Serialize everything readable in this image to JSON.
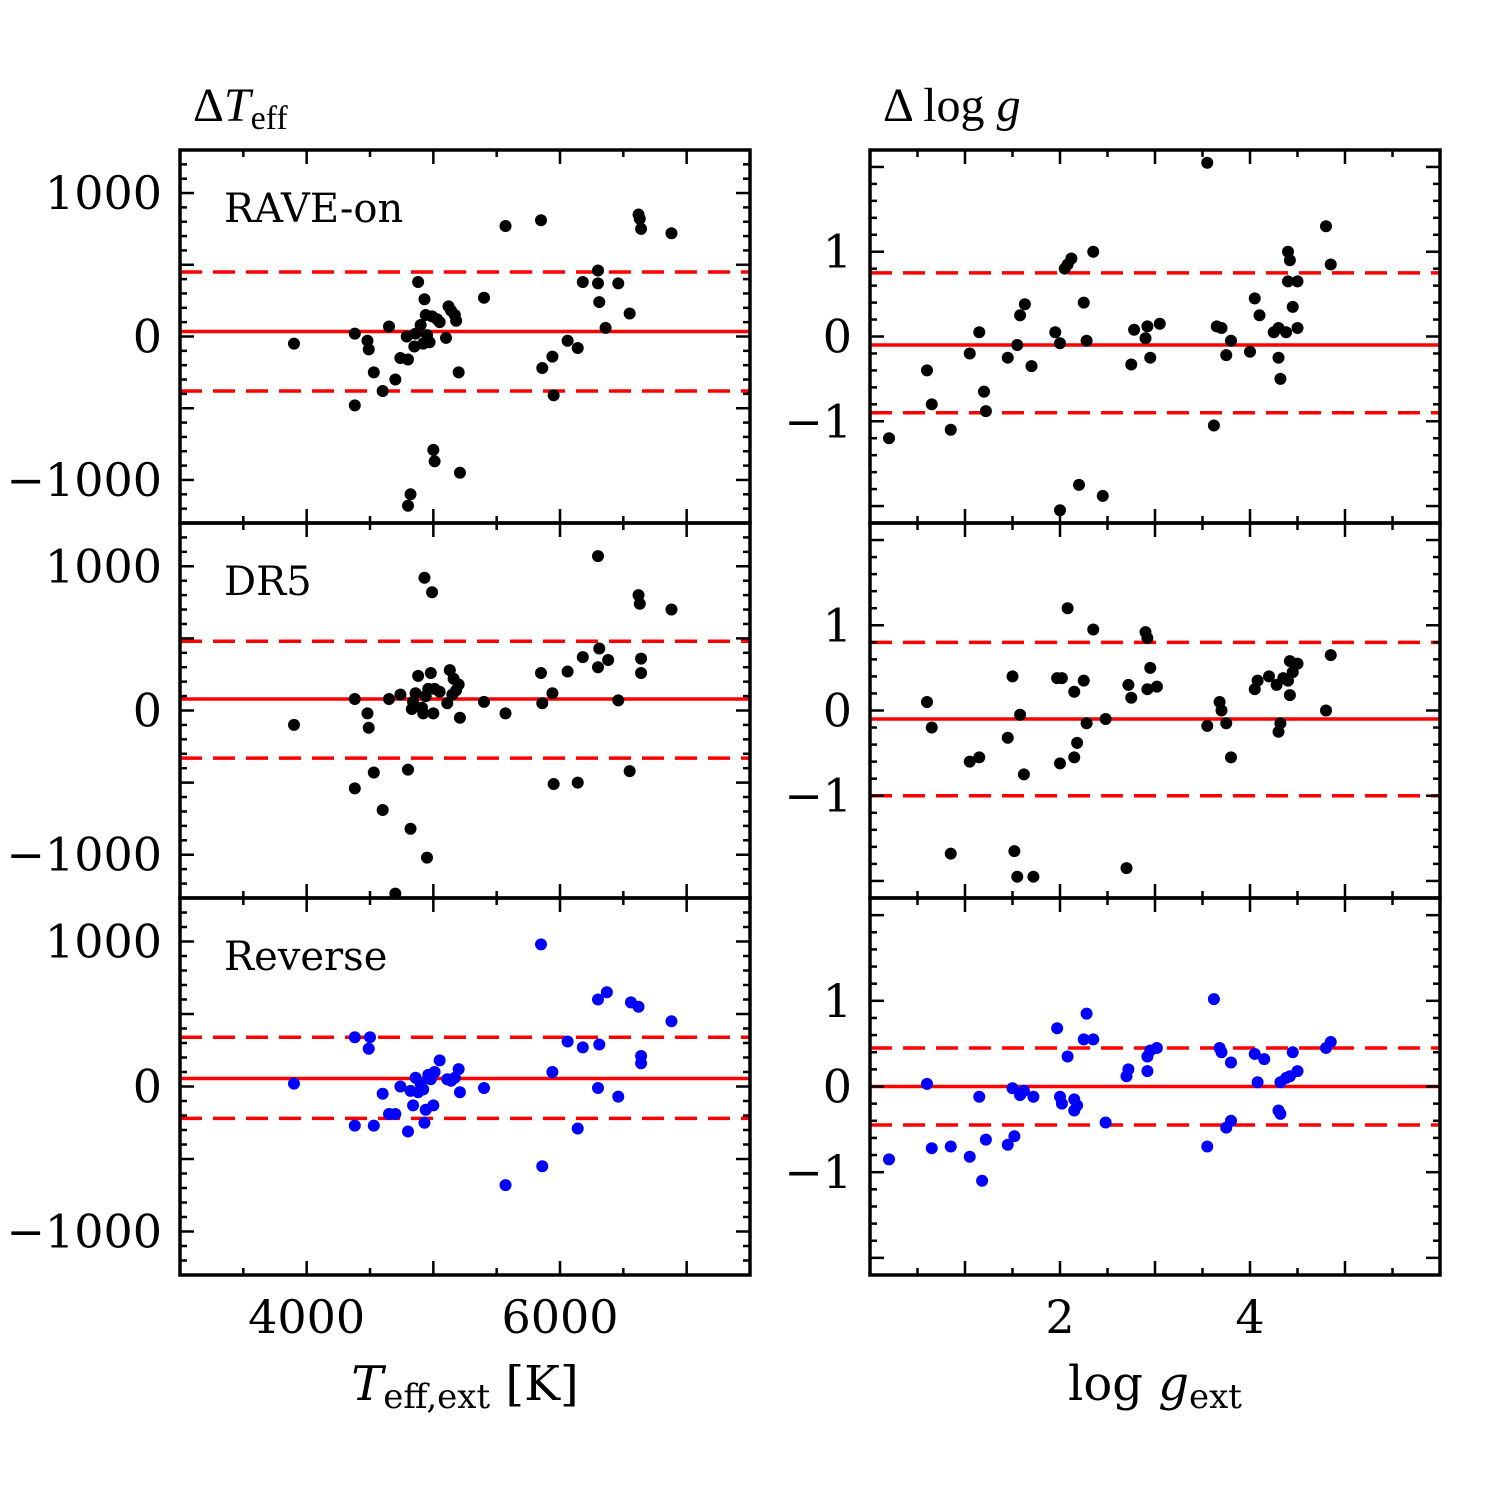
{
  "titles": {
    "left": {
      "delta": "Δ",
      "var": "T",
      "sub": "eff"
    },
    "right": {
      "delta": "Δ",
      "text": " log ",
      "var": "g"
    }
  },
  "row_labels": [
    "RAVE-on",
    "DR5",
    "Reverse"
  ],
  "colors": {
    "black_points": "#000000",
    "blue_points": "#0000ff",
    "lines": "#ff0000"
  },
  "chart_data": [
    {
      "type": "scatter",
      "column": "left",
      "row": "RAVE-on",
      "xlim": [
        3000,
        7500
      ],
      "ylim": [
        -1300,
        1300
      ],
      "yticks": [
        -1000,
        0,
        1000
      ],
      "ytick_labels": [
        "−1000",
        "0",
        "1000"
      ],
      "mean": 35,
      "lines": [
        450,
        -380
      ],
      "color": "#000000",
      "points": [
        [
          3900,
          -50
        ],
        [
          4380,
          20
        ],
        [
          4380,
          -480
        ],
        [
          4480,
          -30
        ],
        [
          4490,
          -90
        ],
        [
          4530,
          -250
        ],
        [
          4600,
          -380
        ],
        [
          4650,
          70
        ],
        [
          4700,
          -300
        ],
        [
          4740,
          -150
        ],
        [
          4800,
          -160
        ],
        [
          4850,
          -70
        ],
        [
          4860,
          20
        ],
        [
          4880,
          380
        ],
        [
          4900,
          80
        ],
        [
          4920,
          -50
        ],
        [
          4930,
          260
        ],
        [
          4940,
          150
        ],
        [
          4950,
          10
        ],
        [
          4970,
          -40
        ],
        [
          4990,
          140
        ],
        [
          5000,
          -790
        ],
        [
          5010,
          -870
        ],
        [
          5030,
          120
        ],
        [
          5050,
          100
        ],
        [
          5100,
          -10
        ],
        [
          5120,
          210
        ],
        [
          5140,
          180
        ],
        [
          5170,
          150
        ],
        [
          5180,
          110
        ],
        [
          5200,
          -250
        ],
        [
          5210,
          -950
        ],
        [
          5400,
          270
        ],
        [
          5570,
          770
        ],
        [
          5850,
          810
        ],
        [
          5860,
          -220
        ],
        [
          5940,
          -140
        ],
        [
          5950,
          -410
        ],
        [
          6060,
          -30
        ],
        [
          6140,
          -80
        ],
        [
          6180,
          380
        ],
        [
          6300,
          460
        ],
        [
          6310,
          240
        ],
        [
          6300,
          370
        ],
        [
          6360,
          60
        ],
        [
          6460,
          370
        ],
        [
          6550,
          160
        ],
        [
          6620,
          850
        ],
        [
          6630,
          820
        ],
        [
          6640,
          750
        ],
        [
          6880,
          720
        ],
        [
          4820,
          -1100
        ],
        [
          4800,
          -1180
        ],
        [
          4790,
          0
        ]
      ]
    },
    {
      "type": "scatter",
      "column": "left",
      "row": "DR5",
      "xlim": [
        3000,
        7500
      ],
      "ylim": [
        -1300,
        1300
      ],
      "yticks": [
        -1000,
        0,
        1000
      ],
      "ytick_labels": [
        "−1000",
        "0",
        "1000"
      ],
      "mean": 80,
      "lines": [
        480,
        -330
      ],
      "color": "#000000",
      "points": [
        [
          3900,
          -100
        ],
        [
          4380,
          80
        ],
        [
          4380,
          -540
        ],
        [
          4480,
          -20
        ],
        [
          4490,
          -120
        ],
        [
          4530,
          -430
        ],
        [
          4600,
          -690
        ],
        [
          4650,
          80
        ],
        [
          4740,
          110
        ],
        [
          4800,
          -410
        ],
        [
          4820,
          -820
        ],
        [
          4830,
          10
        ],
        [
          4840,
          60
        ],
        [
          4860,
          120
        ],
        [
          4880,
          240
        ],
        [
          4910,
          20
        ],
        [
          4920,
          -20
        ],
        [
          4930,
          920
        ],
        [
          4940,
          100
        ],
        [
          4950,
          -1020
        ],
        [
          4960,
          150
        ],
        [
          4980,
          260
        ],
        [
          4990,
          820
        ],
        [
          5000,
          -20
        ],
        [
          5010,
          150
        ],
        [
          5050,
          130
        ],
        [
          5110,
          50
        ],
        [
          5130,
          280
        ],
        [
          5150,
          110
        ],
        [
          5160,
          220
        ],
        [
          5180,
          140
        ],
        [
          5200,
          180
        ],
        [
          5210,
          -50
        ],
        [
          5400,
          60
        ],
        [
          5570,
          -20
        ],
        [
          5850,
          260
        ],
        [
          5860,
          50
        ],
        [
          5940,
          120
        ],
        [
          5950,
          -510
        ],
        [
          6060,
          270
        ],
        [
          6140,
          -500
        ],
        [
          6180,
          370
        ],
        [
          6300,
          1070
        ],
        [
          6300,
          300
        ],
        [
          6310,
          430
        ],
        [
          6380,
          350
        ],
        [
          6460,
          70
        ],
        [
          6550,
          -420
        ],
        [
          6620,
          800
        ],
        [
          6630,
          740
        ],
        [
          6640,
          360
        ],
        [
          6640,
          260
        ],
        [
          6880,
          700
        ],
        [
          4700,
          -1270
        ]
      ]
    },
    {
      "type": "scatter",
      "column": "left",
      "row": "Reverse",
      "xlim": [
        3000,
        7500
      ],
      "ylim": [
        -1300,
        1300
      ],
      "yticks": [
        -1000,
        0,
        1000
      ],
      "ytick_labels": [
        "−1000",
        "0",
        "1000"
      ],
      "mean": 55,
      "lines": [
        340,
        -220
      ],
      "color": "#0000ff",
      "points": [
        [
          3900,
          20
        ],
        [
          4380,
          340
        ],
        [
          4380,
          -270
        ],
        [
          4490,
          260
        ],
        [
          4500,
          340
        ],
        [
          4530,
          -270
        ],
        [
          4600,
          -50
        ],
        [
          4650,
          -190
        ],
        [
          4700,
          -190
        ],
        [
          4740,
          0
        ],
        [
          4800,
          -310
        ],
        [
          4820,
          -30
        ],
        [
          4840,
          -130
        ],
        [
          4860,
          60
        ],
        [
          4880,
          -40
        ],
        [
          4900,
          20
        ],
        [
          4920,
          -20
        ],
        [
          4930,
          -250
        ],
        [
          4940,
          -160
        ],
        [
          4960,
          80
        ],
        [
          4980,
          50
        ],
        [
          5000,
          -130
        ],
        [
          5010,
          100
        ],
        [
          5050,
          180
        ],
        [
          5110,
          50
        ],
        [
          5140,
          40
        ],
        [
          5170,
          60
        ],
        [
          5200,
          120
        ],
        [
          5210,
          -40
        ],
        [
          5400,
          -10
        ],
        [
          5570,
          -680
        ],
        [
          5850,
          980
        ],
        [
          5860,
          -550
        ],
        [
          5940,
          100
        ],
        [
          6060,
          310
        ],
        [
          6140,
          -290
        ],
        [
          6180,
          270
        ],
        [
          6300,
          600
        ],
        [
          6310,
          290
        ],
        [
          6300,
          -10
        ],
        [
          6370,
          650
        ],
        [
          6460,
          -70
        ],
        [
          6560,
          580
        ],
        [
          6620,
          550
        ],
        [
          6640,
          210
        ],
        [
          6640,
          160
        ],
        [
          6880,
          450
        ]
      ]
    },
    {
      "type": "scatter",
      "column": "right",
      "row": "RAVE-on",
      "xlim": [
        0,
        6
      ],
      "ylim": [
        -2.2,
        2.2
      ],
      "yticks": [
        -1,
        0,
        1
      ],
      "ytick_labels": [
        "−1",
        "0",
        "1"
      ],
      "mean": -0.1,
      "lines": [
        0.75,
        -0.9
      ],
      "color": "#000000",
      "points": [
        [
          0.2,
          -1.2
        ],
        [
          0.6,
          -0.4
        ],
        [
          0.65,
          -0.8
        ],
        [
          0.85,
          -1.1
        ],
        [
          1.05,
          -0.2
        ],
        [
          1.15,
          0.05
        ],
        [
          1.2,
          -0.65
        ],
        [
          1.22,
          -0.88
        ],
        [
          1.45,
          -0.25
        ],
        [
          1.55,
          -0.1
        ],
        [
          1.58,
          0.25
        ],
        [
          1.63,
          0.38
        ],
        [
          1.7,
          -0.35
        ],
        [
          1.95,
          0.05
        ],
        [
          2.0,
          -0.08
        ],
        [
          2.05,
          0.8
        ],
        [
          2.08,
          0.85
        ],
        [
          2.12,
          0.92
        ],
        [
          2.2,
          -1.75
        ],
        [
          2.25,
          0.4
        ],
        [
          2.28,
          -0.05
        ],
        [
          2.35,
          1.0
        ],
        [
          2.45,
          -1.88
        ],
        [
          2.75,
          -0.33
        ],
        [
          2.78,
          0.08
        ],
        [
          2.9,
          -0.02
        ],
        [
          2.92,
          0.12
        ],
        [
          2.95,
          -0.25
        ],
        [
          3.05,
          0.15
        ],
        [
          3.55,
          2.05
        ],
        [
          3.62,
          -1.05
        ],
        [
          3.65,
          0.12
        ],
        [
          3.7,
          0.1
        ],
        [
          3.75,
          -0.22
        ],
        [
          3.8,
          -0.05
        ],
        [
          4.0,
          -0.18
        ],
        [
          4.05,
          0.45
        ],
        [
          4.1,
          0.25
        ],
        [
          4.25,
          0.05
        ],
        [
          4.3,
          0.1
        ],
        [
          4.32,
          -0.5
        ],
        [
          4.3,
          -0.25
        ],
        [
          4.38,
          0.05
        ],
        [
          4.4,
          1.0
        ],
        [
          4.42,
          0.9
        ],
        [
          4.4,
          0.65
        ],
        [
          4.45,
          0.35
        ],
        [
          4.5,
          0.65
        ],
        [
          4.5,
          0.1
        ],
        [
          4.8,
          1.3
        ],
        [
          4.85,
          0.85
        ],
        [
          2.0,
          -2.05
        ]
      ]
    },
    {
      "type": "scatter",
      "column": "right",
      "row": "DR5",
      "xlim": [
        0,
        6
      ],
      "ylim": [
        -2.2,
        2.2
      ],
      "yticks": [
        -1,
        0,
        1
      ],
      "ytick_labels": [
        "−1",
        "0",
        "1"
      ],
      "mean": -0.1,
      "lines": [
        0.8,
        -1.0
      ],
      "color": "#000000",
      "points": [
        [
          0.6,
          0.1
        ],
        [
          0.65,
          -0.2
        ],
        [
          0.85,
          -1.68
        ],
        [
          1.05,
          -0.6
        ],
        [
          1.15,
          -0.55
        ],
        [
          1.45,
          -0.32
        ],
        [
          1.5,
          0.4
        ],
        [
          1.52,
          -1.65
        ],
        [
          1.55,
          -1.95
        ],
        [
          1.58,
          -0.05
        ],
        [
          1.62,
          -0.75
        ],
        [
          1.72,
          -1.95
        ],
        [
          1.97,
          0.38
        ],
        [
          2.0,
          -0.62
        ],
        [
          2.02,
          0.38
        ],
        [
          2.08,
          1.2
        ],
        [
          2.15,
          0.22
        ],
        [
          2.15,
          -0.55
        ],
        [
          2.18,
          -0.38
        ],
        [
          2.25,
          0.35
        ],
        [
          2.28,
          -0.15
        ],
        [
          2.35,
          0.95
        ],
        [
          2.48,
          -0.1
        ],
        [
          2.7,
          -1.85
        ],
        [
          2.72,
          0.3
        ],
        [
          2.75,
          0.15
        ],
        [
          2.9,
          0.92
        ],
        [
          2.92,
          0.85
        ],
        [
          2.92,
          0.25
        ],
        [
          2.95,
          0.5
        ],
        [
          3.02,
          0.28
        ],
        [
          3.55,
          -0.18
        ],
        [
          3.68,
          0.1
        ],
        [
          3.7,
          0.0
        ],
        [
          3.75,
          -0.15
        ],
        [
          3.8,
          -0.55
        ],
        [
          4.05,
          0.25
        ],
        [
          4.08,
          0.35
        ],
        [
          4.2,
          0.4
        ],
        [
          4.28,
          0.3
        ],
        [
          4.3,
          -0.25
        ],
        [
          4.32,
          -0.15
        ],
        [
          4.35,
          0.38
        ],
        [
          4.4,
          0.35
        ],
        [
          4.42,
          0.18
        ],
        [
          4.42,
          0.58
        ],
        [
          4.45,
          0.45
        ],
        [
          4.5,
          0.55
        ],
        [
          4.8,
          0.0
        ],
        [
          4.85,
          0.65
        ]
      ]
    },
    {
      "type": "scatter",
      "column": "right",
      "row": "Reverse",
      "xlim": [
        0,
        6
      ],
      "ylim": [
        -2.2,
        2.2
      ],
      "yticks": [
        -1,
        0,
        1
      ],
      "ytick_labels": [
        "−1",
        "0",
        "1"
      ],
      "mean": 0.0,
      "lines": [
        0.45,
        -0.45
      ],
      "color": "#0000ff",
      "points": [
        [
          0.2,
          -0.85
        ],
        [
          0.6,
          0.03
        ],
        [
          0.65,
          -0.72
        ],
        [
          0.85,
          -0.7
        ],
        [
          1.05,
          -0.82
        ],
        [
          1.15,
          -0.12
        ],
        [
          1.18,
          -1.1
        ],
        [
          1.22,
          -0.62
        ],
        [
          1.45,
          -0.68
        ],
        [
          1.5,
          -0.02
        ],
        [
          1.52,
          -0.58
        ],
        [
          1.58,
          -0.1
        ],
        [
          1.62,
          -0.05
        ],
        [
          1.72,
          -0.12
        ],
        [
          1.97,
          0.68
        ],
        [
          2.0,
          -0.12
        ],
        [
          2.02,
          -0.2
        ],
        [
          2.08,
          0.35
        ],
        [
          2.15,
          -0.15
        ],
        [
          2.15,
          -0.28
        ],
        [
          2.18,
          -0.22
        ],
        [
          2.25,
          0.55
        ],
        [
          2.28,
          0.85
        ],
        [
          2.35,
          0.55
        ],
        [
          2.48,
          -0.42
        ],
        [
          2.7,
          0.12
        ],
        [
          2.72,
          0.2
        ],
        [
          2.92,
          0.18
        ],
        [
          2.92,
          0.35
        ],
        [
          2.95,
          0.42
        ],
        [
          3.02,
          0.45
        ],
        [
          3.55,
          -0.7
        ],
        [
          3.62,
          1.02
        ],
        [
          3.68,
          0.45
        ],
        [
          3.7,
          0.4
        ],
        [
          3.75,
          -0.48
        ],
        [
          3.8,
          0.28
        ],
        [
          3.8,
          -0.4
        ],
        [
          4.05,
          0.38
        ],
        [
          4.08,
          0.05
        ],
        [
          4.15,
          0.32
        ],
        [
          4.3,
          -0.28
        ],
        [
          4.32,
          -0.32
        ],
        [
          4.32,
          0.05
        ],
        [
          4.38,
          0.1
        ],
        [
          4.42,
          0.12
        ],
        [
          4.45,
          0.4
        ],
        [
          4.5,
          0.18
        ],
        [
          4.8,
          0.45
        ],
        [
          4.85,
          0.52
        ]
      ]
    }
  ],
  "x_axes": {
    "left": {
      "ticks": [
        4000,
        6000
      ],
      "tick_labels": [
        "4000",
        "6000"
      ],
      "label_var": "T",
      "label_sub": "eff,ext",
      "label_unit": " [K]"
    },
    "right": {
      "ticks": [
        2,
        4
      ],
      "tick_labels": [
        "2",
        "4"
      ],
      "label_pre": "log ",
      "label_var": "g",
      "label_sub": "ext"
    }
  }
}
